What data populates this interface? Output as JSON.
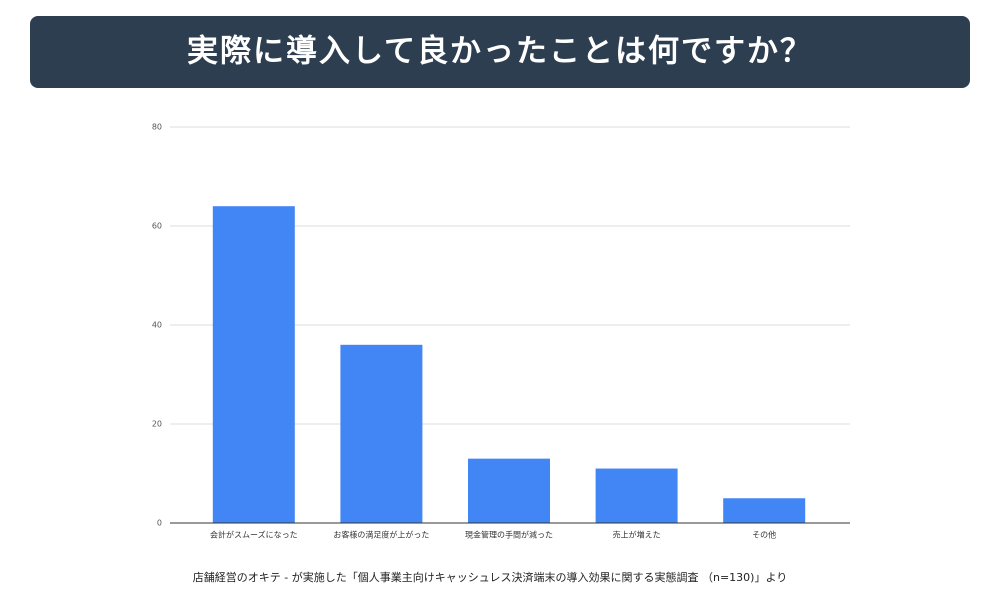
{
  "chart_data": {
    "type": "bar",
    "title": "実際に導入して良かったことは何ですか？",
    "categories": [
      "会計がスムーズになった",
      "お客様の満足度が上がった",
      "現金管理の手間が減った",
      "売上が増えた",
      "その他"
    ],
    "values": [
      64,
      36,
      13,
      11,
      5
    ],
    "color": "#4285f4",
    "ylim": [
      0,
      80
    ],
    "yticks": [
      0,
      20,
      40,
      60,
      80
    ],
    "grid": true,
    "source": "店舗経営のオキテ - が実施した「個人事業主向けキャッシュレス決済端末の導入効果に関する実態調査 （n=130)」より"
  }
}
